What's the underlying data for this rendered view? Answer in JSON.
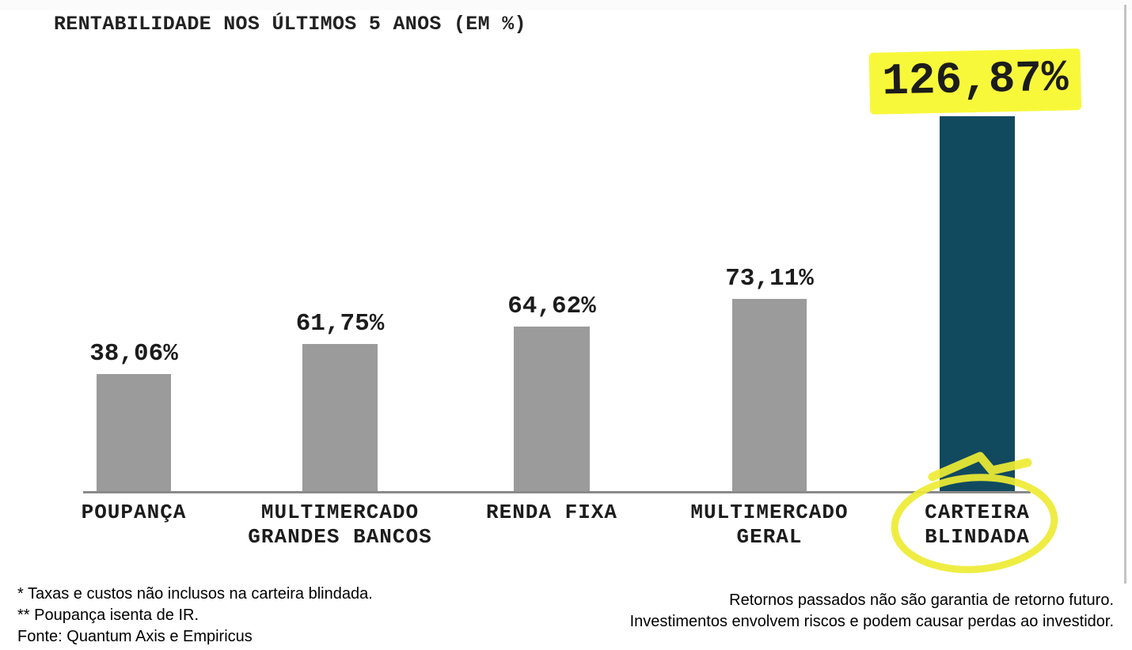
{
  "chart_data": {
    "type": "bar",
    "title": "RENTABILIDADE NOS ÚLTIMOS 5 ANOS (EM %)",
    "categories": [
      "POUPANÇA",
      "MULTIMERCADO\nGRANDES BANCOS",
      "RENDA FIXA",
      "MULTIMERCADO\nGERAL",
      "CARTEIRA\nBLINDADA"
    ],
    "values": [
      38.06,
      61.75,
      64.62,
      73.11,
      126.87
    ],
    "value_labels": [
      "38,06%",
      "61,75%",
      "64,62%",
      "73,11%",
      "126,87%"
    ],
    "highlighted_index": 4,
    "bar_color": "#9b9b9b",
    "highlight_bar_color": "#114a5f",
    "highlight_text_bg": "#f8f83a",
    "highlight_circle_color": "#eeeb33",
    "axis_color": "#8a8a8a",
    "text_color": "#1c1c1c",
    "xlabel": "",
    "ylabel": "",
    "ylim": [
      0,
      140
    ],
    "grid": false,
    "legend": false
  },
  "footnotes": {
    "left": [
      "* Taxas e custos não inclusos na carteira blindada.",
      "** Poupança isenta de IR.",
      "Fonte: Quantum Axis e Empiricus"
    ],
    "right": [
      "Retornos passados não são garantia de retorno futuro.",
      "Investimentos envolvem riscos e podem causar perdas ao investidor."
    ]
  }
}
